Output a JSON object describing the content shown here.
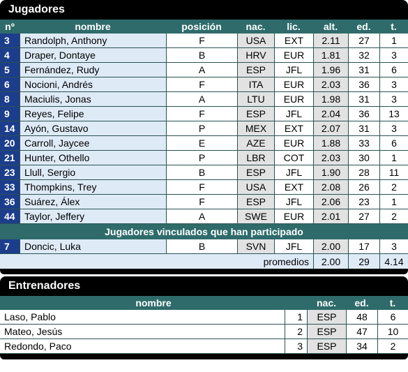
{
  "players": {
    "title": "Jugadores",
    "headers": [
      "nº",
      "nombre",
      "posición",
      "nac.",
      "lic.",
      "alt.",
      "ed.",
      "t."
    ],
    "rows": [
      {
        "n": "3",
        "name": "Randolph, Anthony",
        "pos": "F",
        "nac": "USA",
        "lic": "EXT",
        "alt": "2.11",
        "ed": "27",
        "t": "1"
      },
      {
        "n": "4",
        "name": "Draper, Dontaye",
        "pos": "B",
        "nac": "HRV",
        "lic": "EUR",
        "alt": "1.81",
        "ed": "32",
        "t": "3"
      },
      {
        "n": "5",
        "name": "Fernández, Rudy",
        "pos": "A",
        "nac": "ESP",
        "lic": "JFL",
        "alt": "1.96",
        "ed": "31",
        "t": "6"
      },
      {
        "n": "6",
        "name": "Nocioni, Andrés",
        "pos": "F",
        "nac": "ITA",
        "lic": "EUR",
        "alt": "2.03",
        "ed": "36",
        "t": "3"
      },
      {
        "n": "8",
        "name": "Maciulis, Jonas",
        "pos": "A",
        "nac": "LTU",
        "lic": "EUR",
        "alt": "1.98",
        "ed": "31",
        "t": "3"
      },
      {
        "n": "9",
        "name": "Reyes, Felipe",
        "pos": "F",
        "nac": "ESP",
        "lic": "JFL",
        "alt": "2.04",
        "ed": "36",
        "t": "13"
      },
      {
        "n": "14",
        "name": "Ayón, Gustavo",
        "pos": "P",
        "nac": "MEX",
        "lic": "EXT",
        "alt": "2.07",
        "ed": "31",
        "t": "3"
      },
      {
        "n": "20",
        "name": "Carroll, Jaycee",
        "pos": "E",
        "nac": "AZE",
        "lic": "EUR",
        "alt": "1.88",
        "ed": "33",
        "t": "6"
      },
      {
        "n": "21",
        "name": "Hunter, Othello",
        "pos": "P",
        "nac": "LBR",
        "lic": "COT",
        "alt": "2.03",
        "ed": "30",
        "t": "1"
      },
      {
        "n": "23",
        "name": "Llull, Sergio",
        "pos": "B",
        "nac": "ESP",
        "lic": "JFL",
        "alt": "1.90",
        "ed": "28",
        "t": "11"
      },
      {
        "n": "33",
        "name": "Thompkins, Trey",
        "pos": "F",
        "nac": "USA",
        "lic": "EXT",
        "alt": "2.08",
        "ed": "26",
        "t": "2"
      },
      {
        "n": "36",
        "name": "Suárez, Álex",
        "pos": "F",
        "nac": "ESP",
        "lic": "JFL",
        "alt": "2.06",
        "ed": "23",
        "t": "1"
      },
      {
        "n": "44",
        "name": "Taylor, Jeffery",
        "pos": "A",
        "nac": "SWE",
        "lic": "EUR",
        "alt": "2.01",
        "ed": "27",
        "t": "2"
      }
    ],
    "section_label": "Jugadores vinculados que han participado",
    "linked_rows": [
      {
        "n": "7",
        "name": "Doncic, Luka",
        "pos": "B",
        "nac": "SVN",
        "lic": "JFL",
        "alt": "2.00",
        "ed": "17",
        "t": "3"
      }
    ],
    "averages": {
      "label": "promedios",
      "alt": "2.00",
      "ed": "29",
      "t": "4.14"
    }
  },
  "coaches": {
    "title": "Entrenadores",
    "headers": [
      "nombre",
      "nac.",
      "ed.",
      "t."
    ],
    "rows": [
      {
        "name": "Laso, Pablo",
        "idx": "1",
        "nac": "ESP",
        "ed": "48",
        "t": "6"
      },
      {
        "name": "Mateo, Jesús",
        "idx": "2",
        "nac": "ESP",
        "ed": "47",
        "t": "10"
      },
      {
        "name": "Redondo, Paco",
        "idx": "3",
        "nac": "ESP",
        "ed": "34",
        "t": "2"
      }
    ]
  }
}
